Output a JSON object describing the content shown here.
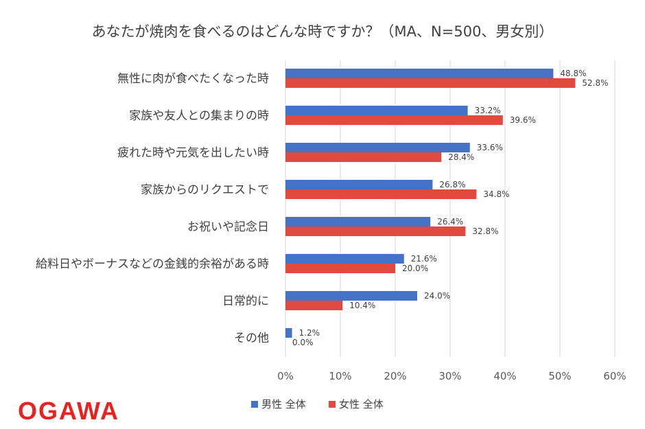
{
  "chart_data": {
    "type": "bar",
    "orientation": "horizontal",
    "title": "あなたが焼肉を食べるのはどんな時ですか？（MA、N=500、男女別）",
    "categories": [
      "無性に肉が食べたくなった時",
      "家族や友人との集まりの時",
      "疲れた時や元気を出したい時",
      "家族からのリクエストで",
      "お祝いや記念日",
      "給料日やボーナスなどの金銭的余裕がある時",
      "日常的に",
      "その他"
    ],
    "series": [
      {
        "name": "男性 全体",
        "color": "#4472c4",
        "values": [
          48.8,
          33.2,
          33.6,
          26.8,
          26.4,
          21.6,
          24.0,
          1.2
        ],
        "labels": [
          "48.8%",
          "33.2%",
          "33.6%",
          "26.8%",
          "26.4%",
          "21.6%",
          "24.0%",
          "1.2%"
        ]
      },
      {
        "name": "女性 全体",
        "color": "#e04a3c",
        "values": [
          52.8,
          39.6,
          28.4,
          34.8,
          32.8,
          20.0,
          10.4,
          0.0
        ],
        "labels": [
          "52.8%",
          "39.6%",
          "28.4%",
          "34.8%",
          "32.8%",
          "20.0%",
          "10.4%",
          "0.0%"
        ]
      }
    ],
    "xlim": [
      0,
      60
    ],
    "ticks": [
      0,
      10,
      20,
      30,
      40,
      50,
      60
    ],
    "tick_labels": [
      "0%",
      "10%",
      "20%",
      "30%",
      "40%",
      "50%",
      "60%"
    ],
    "grid": true,
    "legend": "bottom"
  },
  "brand": {
    "logo_text": "OGAWA",
    "logo_color": "#e8231f"
  }
}
